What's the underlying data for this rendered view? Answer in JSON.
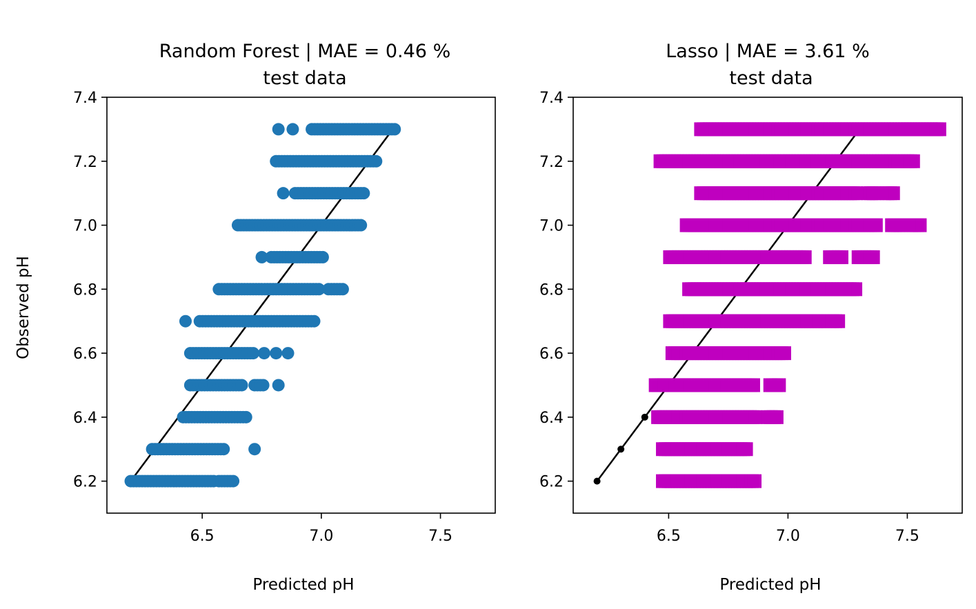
{
  "figure": {
    "ylabel": "Observed pH"
  },
  "chart_data": [
    {
      "type": "scatter",
      "title": "Random Forest | MAE = 0.46 %",
      "subtitle": "test data",
      "xlabel": "Predicted pH",
      "ylabel": "Observed pH",
      "xlim": [
        6.1,
        7.73
      ],
      "ylim": [
        6.1,
        7.4
      ],
      "xticks": [
        "6.5",
        "7.0",
        "7.5"
      ],
      "yticks": [
        "6.2",
        "6.4",
        "6.6",
        "6.8",
        "7.0",
        "7.2",
        "7.4"
      ],
      "marker": "circle",
      "color": "#1f77b4",
      "identity_line": {
        "color": "#000000",
        "from": 6.2,
        "to": 7.3
      },
      "rows": [
        {
          "y": 7.3,
          "segments": [
            [
              6.82,
              6.82
            ],
            [
              6.88,
              6.88
            ],
            [
              6.96,
              7.31
            ]
          ]
        },
        {
          "y": 7.2,
          "segments": [
            [
              6.81,
              7.23
            ]
          ]
        },
        {
          "y": 7.1,
          "segments": [
            [
              6.84,
              6.84
            ],
            [
              6.89,
              7.18
            ]
          ]
        },
        {
          "y": 7.0,
          "segments": [
            [
              6.65,
              7.17
            ]
          ]
        },
        {
          "y": 6.9,
          "segments": [
            [
              6.75,
              6.75
            ],
            [
              6.79,
              7.01
            ]
          ]
        },
        {
          "y": 6.8,
          "segments": [
            [
              6.57,
              6.99
            ],
            [
              7.03,
              7.09
            ]
          ]
        },
        {
          "y": 6.7,
          "segments": [
            [
              6.43,
              6.43
            ],
            [
              6.49,
              6.98
            ]
          ]
        },
        {
          "y": 6.6,
          "segments": [
            [
              6.45,
              6.72
            ],
            [
              6.76,
              6.76
            ],
            [
              6.81,
              6.81
            ],
            [
              6.86,
              6.86
            ]
          ]
        },
        {
          "y": 6.5,
          "segments": [
            [
              6.45,
              6.67
            ],
            [
              6.72,
              6.76
            ],
            [
              6.82,
              6.82
            ]
          ]
        },
        {
          "y": 6.4,
          "segments": [
            [
              6.42,
              6.69
            ]
          ]
        },
        {
          "y": 6.3,
          "segments": [
            [
              6.29,
              6.6
            ],
            [
              6.72,
              6.72
            ]
          ]
        },
        {
          "y": 6.2,
          "segments": [
            [
              6.2,
              6.55
            ],
            [
              6.57,
              6.63
            ]
          ]
        }
      ]
    },
    {
      "type": "scatter",
      "title": "Lasso | MAE = 3.61 %",
      "subtitle": "test data",
      "xlabel": "Predicted pH",
      "ylabel": "",
      "xlim": [
        6.1,
        7.73
      ],
      "ylim": [
        6.1,
        7.4
      ],
      "xticks": [
        "6.5",
        "7.0",
        "7.5"
      ],
      "yticks": [
        "6.2",
        "6.4",
        "6.6",
        "6.8",
        "7.0",
        "7.2",
        "7.4"
      ],
      "marker": "square",
      "color": "#bf00bf",
      "identity_line": {
        "color": "#000000",
        "from": 6.2,
        "to": 7.3
      },
      "rows": [
        {
          "y": 7.3,
          "segments": [
            [
              6.63,
              7.45
            ],
            [
              7.46,
              7.65
            ]
          ]
        },
        {
          "y": 7.2,
          "segments": [
            [
              6.46,
              7.34
            ],
            [
              7.35,
              7.54
            ]
          ]
        },
        {
          "y": 7.1,
          "segments": [
            [
              6.63,
              7.29
            ],
            [
              7.33,
              7.38
            ],
            [
              7.41,
              7.45
            ]
          ]
        },
        {
          "y": 7.0,
          "segments": [
            [
              6.57,
              7.38
            ],
            [
              7.43,
              7.48
            ],
            [
              7.51,
              7.56
            ]
          ]
        },
        {
          "y": 6.9,
          "segments": [
            [
              6.5,
              7.08
            ],
            [
              7.17,
              7.23
            ],
            [
              7.29,
              7.37
            ]
          ]
        },
        {
          "y": 6.8,
          "segments": [
            [
              6.58,
              7.29
            ]
          ]
        },
        {
          "y": 6.7,
          "segments": [
            [
              6.5,
              7.17
            ],
            [
              7.18,
              7.22
            ]
          ]
        },
        {
          "y": 6.6,
          "segments": [
            [
              6.51,
              6.99
            ]
          ]
        },
        {
          "y": 6.5,
          "segments": [
            [
              6.44,
              6.87
            ],
            [
              6.92,
              6.97
            ]
          ]
        },
        {
          "y": 6.4,
          "segments": [
            [
              6.45,
              6.87
            ],
            [
              6.91,
              6.96
            ]
          ]
        },
        {
          "y": 6.3,
          "segments": [
            [
              6.47,
              6.83
            ]
          ]
        },
        {
          "y": 6.2,
          "segments": [
            [
              6.47,
              6.87
            ]
          ]
        }
      ],
      "extra_points": [
        [
          6.2,
          6.2
        ],
        [
          6.3,
          6.3
        ],
        [
          6.4,
          6.4
        ]
      ]
    }
  ]
}
